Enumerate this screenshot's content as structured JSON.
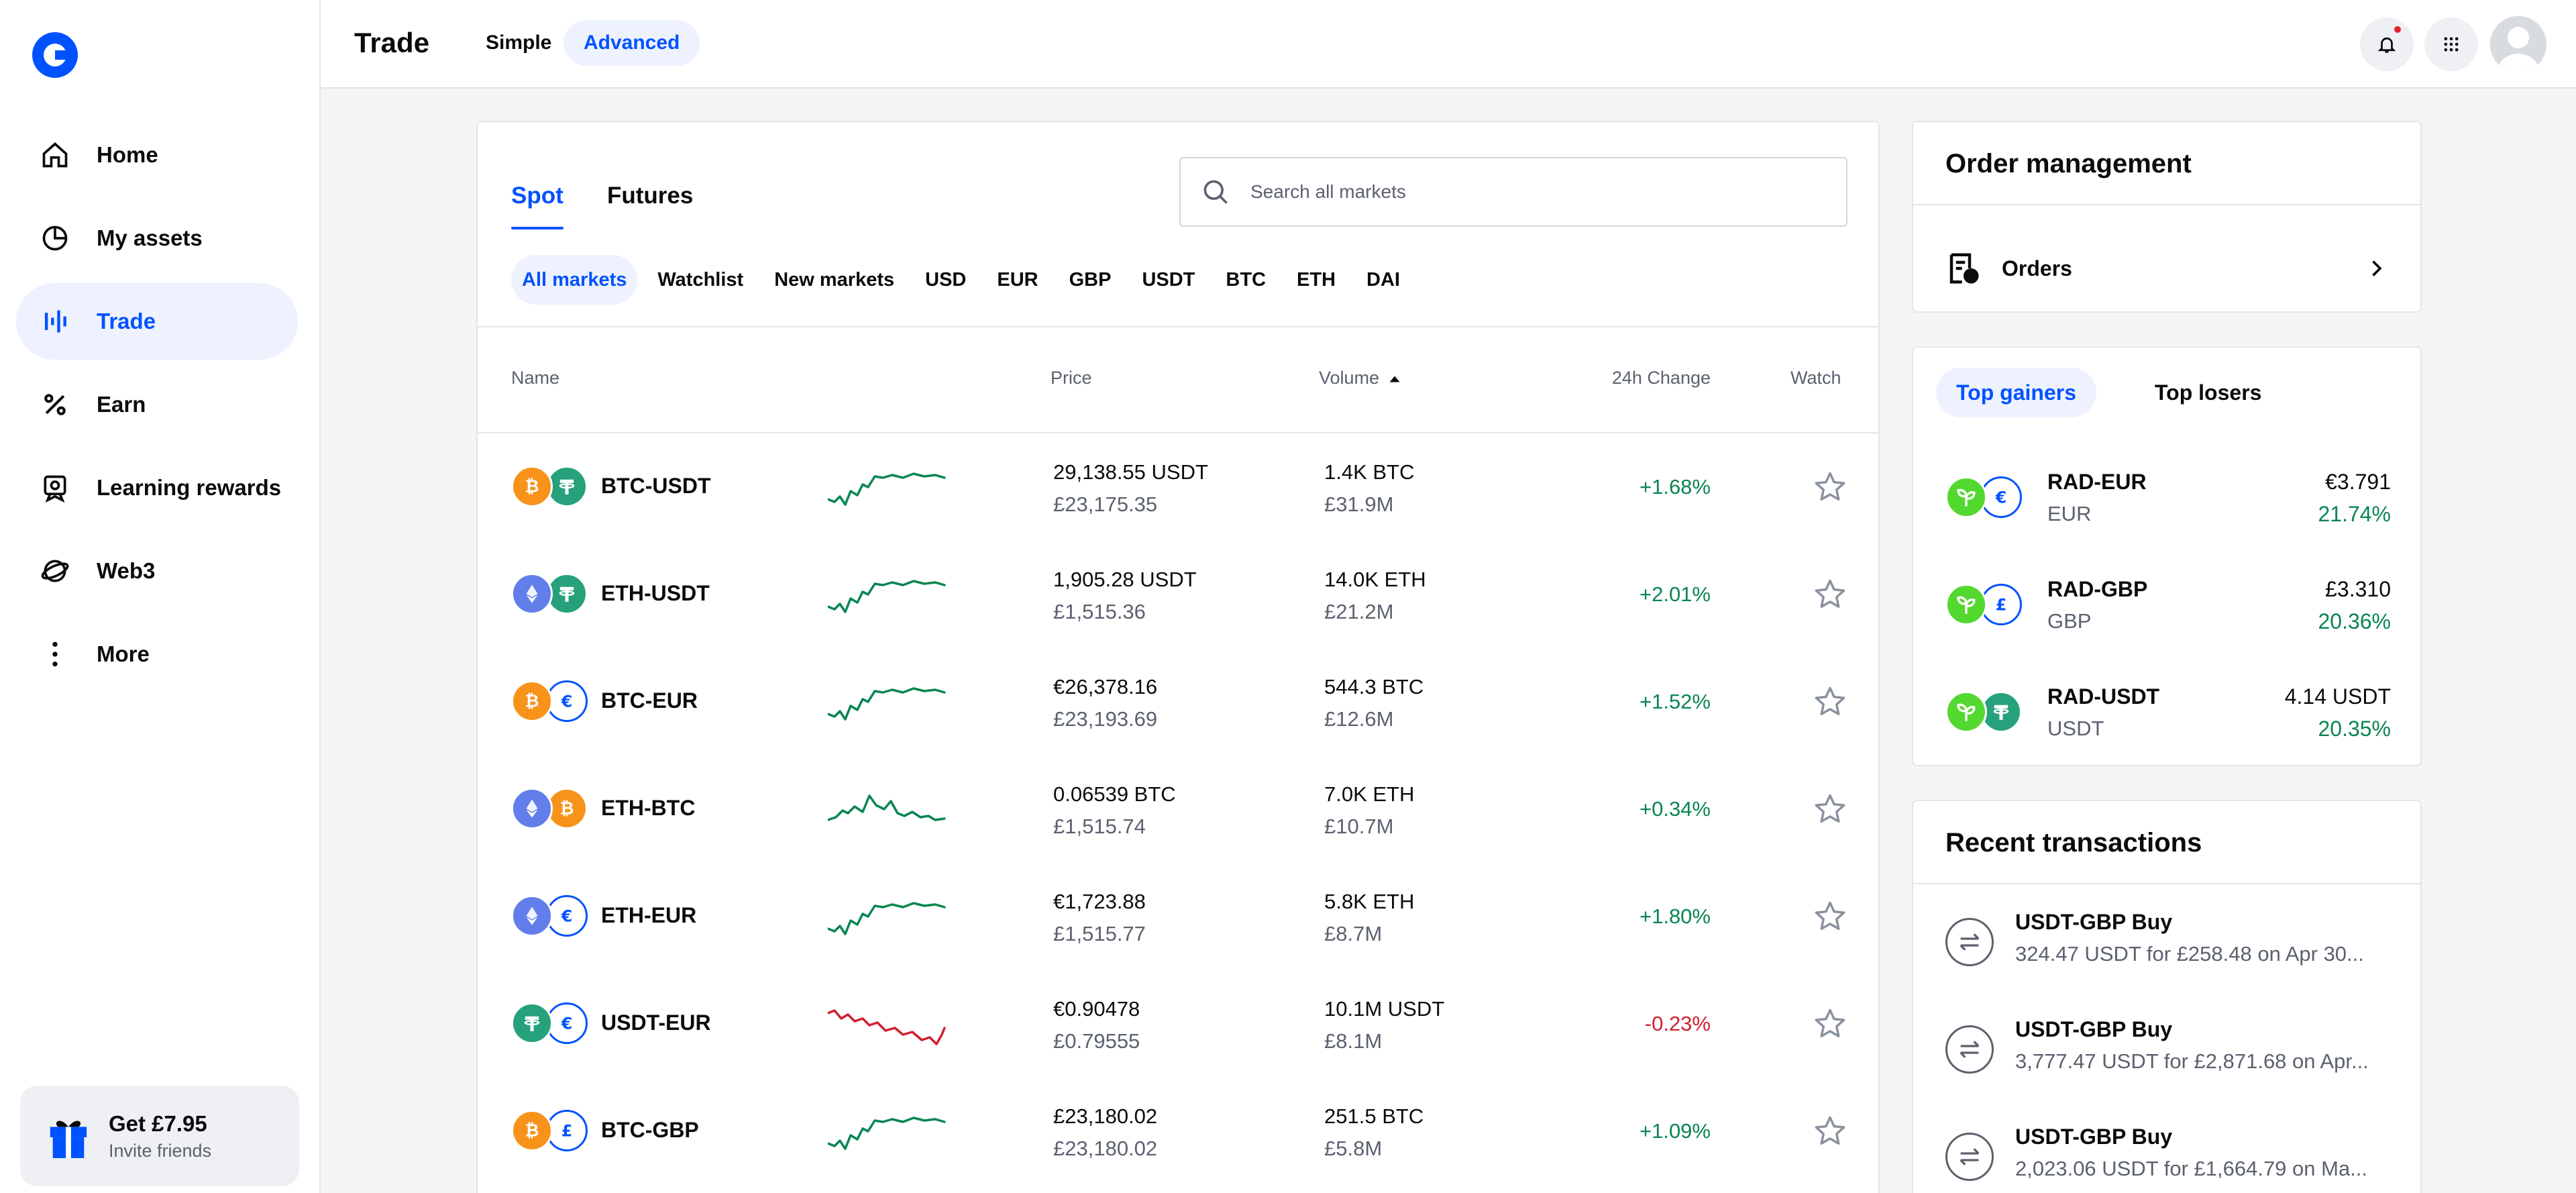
{
  "app": {
    "title": "Trade",
    "modes": {
      "simple": "Simple",
      "advanced": "Advanced"
    }
  },
  "sidebar": {
    "items": [
      {
        "label": "Home",
        "icon": "home-icon"
      },
      {
        "label": "My assets",
        "icon": "pie-chart-icon"
      },
      {
        "label": "Trade",
        "icon": "trade-bars-icon"
      },
      {
        "label": "Earn",
        "icon": "percent-icon"
      },
      {
        "label": "Learning rewards",
        "icon": "learning-badge-icon"
      },
      {
        "label": "Web3",
        "icon": "web3-icon"
      },
      {
        "label": "More",
        "icon": "more-vertical-icon"
      }
    ],
    "invite": {
      "title": "Get £7.95",
      "subtitle": "Invite friends"
    }
  },
  "market": {
    "tabs": {
      "spot": "Spot",
      "futures": "Futures"
    },
    "search_placeholder": "Search all markets",
    "filters": [
      "All markets",
      "Watchlist",
      "New markets",
      "USD",
      "EUR",
      "GBP",
      "USDT",
      "BTC",
      "ETH",
      "DAI"
    ],
    "columns": {
      "name": "Name",
      "price": "Price",
      "volume": "Volume",
      "change": "24h Change",
      "watch": "Watch"
    },
    "rows": [
      {
        "pair": "BTC-USDT",
        "price": "29,138.55 USDT",
        "price_fiat": "£23,175.35",
        "volume": "1.4K BTC",
        "volume_fiat": "£31.9M",
        "change": "+1.68%",
        "trend": "up",
        "base": "btc",
        "quote": "usdt"
      },
      {
        "pair": "ETH-USDT",
        "price": "1,905.28 USDT",
        "price_fiat": "£1,515.36",
        "volume": "14.0K ETH",
        "volume_fiat": "£21.2M",
        "change": "+2.01%",
        "trend": "up",
        "base": "eth",
        "quote": "usdt"
      },
      {
        "pair": "BTC-EUR",
        "price": "€26,378.16",
        "price_fiat": "£23,193.69",
        "volume": "544.3 BTC",
        "volume_fiat": "£12.6M",
        "change": "+1.52%",
        "trend": "up",
        "base": "btc",
        "quote": "eur"
      },
      {
        "pair": "ETH-BTC",
        "price": "0.06539 BTC",
        "price_fiat": "£1,515.74",
        "volume": "7.0K ETH",
        "volume_fiat": "£10.7M",
        "change": "+0.34%",
        "trend": "up",
        "base": "eth",
        "quote": "btc"
      },
      {
        "pair": "ETH-EUR",
        "price": "€1,723.88",
        "price_fiat": "£1,515.77",
        "volume": "5.8K ETH",
        "volume_fiat": "£8.7M",
        "change": "+1.80%",
        "trend": "up",
        "base": "eth",
        "quote": "eur"
      },
      {
        "pair": "USDT-EUR",
        "price": "€0.90478",
        "price_fiat": "£0.79555",
        "volume": "10.1M USDT",
        "volume_fiat": "£8.1M",
        "change": "-0.23%",
        "trend": "down",
        "base": "usdt",
        "quote": "eur"
      },
      {
        "pair": "BTC-GBP",
        "price": "£23,180.02",
        "price_fiat": "£23,180.02",
        "volume": "251.5 BTC",
        "volume_fiat": "£5.8M",
        "change": "+1.09%",
        "trend": "up",
        "base": "btc",
        "quote": "gbp"
      }
    ]
  },
  "orders": {
    "title": "Order management",
    "label": "Orders"
  },
  "gainers": {
    "tabs": {
      "gainers": "Top gainers",
      "losers": "Top losers"
    },
    "items": [
      {
        "pair": "RAD-EUR",
        "quote": "EUR",
        "price": "€3.791",
        "change": "21.74%"
      },
      {
        "pair": "RAD-GBP",
        "quote": "GBP",
        "price": "£3.310",
        "change": "20.36%"
      },
      {
        "pair": "RAD-USDT",
        "quote": "USDT",
        "price": "4.14 USDT",
        "change": "20.35%"
      }
    ]
  },
  "transactions": {
    "title": "Recent transactions",
    "items": [
      {
        "title": "USDT-GBP Buy",
        "detail": "324.47 USDT for £258.48 on Apr 30..."
      },
      {
        "title": "USDT-GBP Buy",
        "detail": "3,777.47 USDT for £2,871.68 on Apr..."
      },
      {
        "title": "USDT-GBP Buy",
        "detail": "2,023.06 USDT for £1,664.79 on Ma..."
      }
    ]
  },
  "colors": {
    "accent": "#0052ff",
    "positive": "#098551",
    "negative": "#cf202f",
    "btc": "#f7931a",
    "eth": "#627eea",
    "usdt": "#26a17b",
    "rad": "#53d82f"
  }
}
